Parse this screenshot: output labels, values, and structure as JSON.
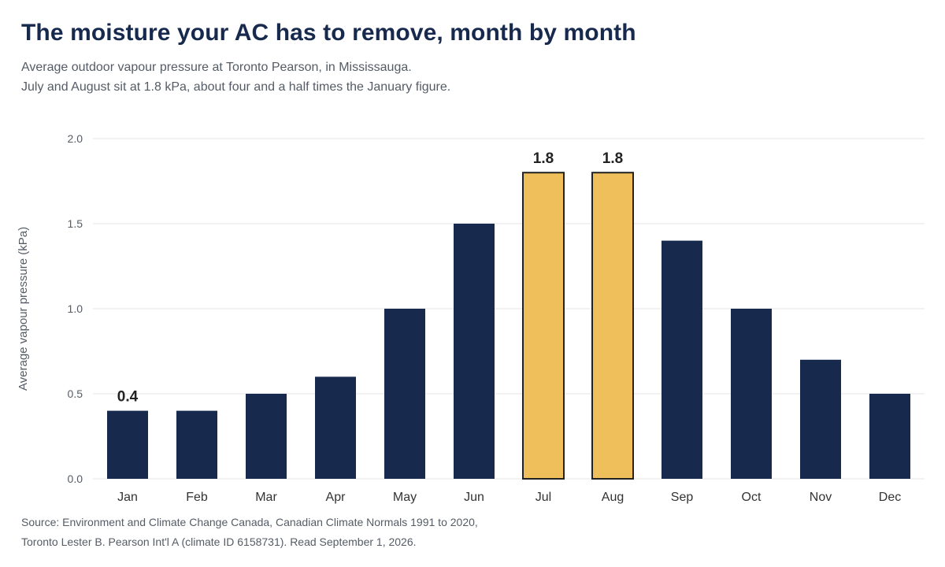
{
  "title": "The moisture your AC has to remove, month by month",
  "subtitle_line1": "Average outdoor vapour pressure at Toronto Pearson, in Mississauga.",
  "subtitle_line2": "July and August sit at 1.8 kPa, about four and a half times the January figure.",
  "source_line1": "Source: Environment and Climate Change Canada, Canadian Climate Normals 1991 to 2020,",
  "source_line2": "Toronto Lester B. Pearson Int'l A (climate ID 6158731). Read September 1, 2026.",
  "colors": {
    "bar": "#172a4e",
    "highlight": "#eebf5b",
    "highlight_outline": "#222222",
    "grid": "#e6e6e6",
    "axis_text": "#555c66",
    "label_text": "#222222"
  },
  "chart_data": {
    "type": "bar",
    "categories": [
      "Jan",
      "Feb",
      "Mar",
      "Apr",
      "May",
      "Jun",
      "Jul",
      "Aug",
      "Sep",
      "Oct",
      "Nov",
      "Dec"
    ],
    "values": [
      0.4,
      0.4,
      0.5,
      0.6,
      1.0,
      1.5,
      1.8,
      1.8,
      1.4,
      1.0,
      0.7,
      0.5
    ],
    "highlighted": [
      "Jul",
      "Aug"
    ],
    "data_labels": {
      "Jan": "0.4",
      "Jul": "1.8",
      "Aug": "1.8"
    },
    "ylabel": "Average vapour pressure (kPa)",
    "xlabel": "",
    "ylim": [
      0,
      2.0
    ],
    "yticks": [
      "0.0",
      "0.5",
      "1.0",
      "1.5",
      "2.0"
    ],
    "grid": true,
    "legend": "none"
  }
}
